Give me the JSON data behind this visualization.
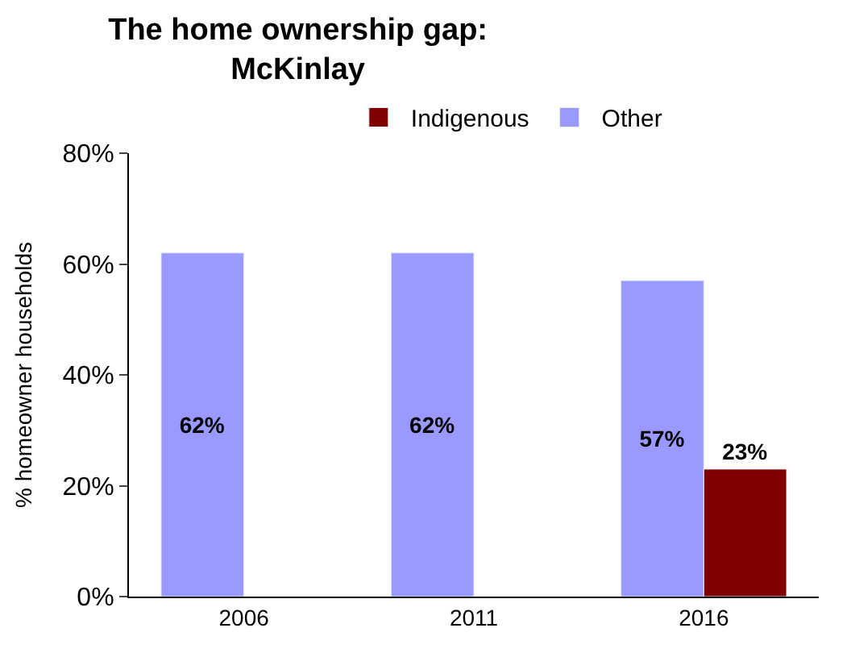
{
  "chart_data": {
    "type": "bar",
    "title": "The home ownership gap:\nMcKinlay",
    "ylabel": "% homeowner households",
    "categories": [
      "2006",
      "2011",
      "2016"
    ],
    "series": [
      {
        "name": "Other",
        "color": "#9999ff",
        "values": [
          62,
          62,
          57
        ],
        "value_labels": [
          "62%",
          "62%",
          "57%"
        ]
      },
      {
        "name": "Indigenous",
        "color": "#800000",
        "values": [
          null,
          null,
          23
        ],
        "value_labels": [
          null,
          null,
          "23%"
        ]
      }
    ],
    "ylim": [
      0,
      80
    ],
    "yticks": [
      {
        "value": 0,
        "label": "0%"
      },
      {
        "value": 20,
        "label": "20%"
      },
      {
        "value": 40,
        "label": "40%"
      },
      {
        "value": 60,
        "label": "60%"
      },
      {
        "value": 80,
        "label": "80%"
      }
    ],
    "legend": "top"
  }
}
